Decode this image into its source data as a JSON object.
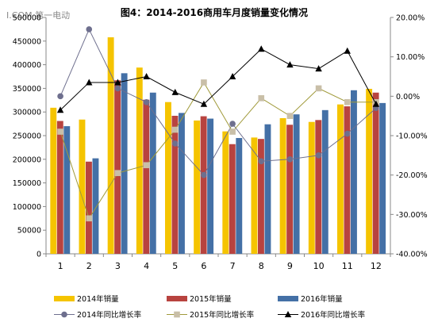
{
  "watermark": "I.COM 第一电动",
  "chart_data": {
    "type": "bar",
    "title": "图4：2014-2016商用车月度销量变化情况",
    "categories": [
      "1",
      "2",
      "3",
      "4",
      "5",
      "6",
      "7",
      "8",
      "9",
      "10",
      "11",
      "12"
    ],
    "left_axis": {
      "min": 0,
      "max": 500000,
      "step": 50000,
      "tick_labels": [
        "0",
        "50000",
        "100000",
        "150000",
        "200000",
        "250000",
        "300000",
        "350000",
        "400000",
        "450000",
        "500000"
      ]
    },
    "right_axis": {
      "min": -40,
      "max": 20,
      "step": 10,
      "tick_labels": [
        "-40.00%",
        "-30.00%",
        "-20.00%",
        "-10.00%",
        "0.00%",
        "10.00%",
        "20.00%"
      ]
    },
    "bar_series": [
      {
        "name": "2014年销量",
        "color": "#F5C400",
        "values": [
          309000,
          284000,
          458000,
          394000,
          321000,
          282000,
          259000,
          246000,
          287000,
          279000,
          316000,
          349000
        ]
      },
      {
        "name": "2015年销量",
        "color": "#B8433F",
        "values": [
          281000,
          195000,
          367000,
          326000,
          292000,
          291000,
          232000,
          243000,
          273000,
          283000,
          312000,
          341000
        ]
      },
      {
        "name": "2016年销量",
        "color": "#4470A6",
        "values": [
          270000,
          202000,
          382000,
          341000,
          298000,
          286000,
          245000,
          274000,
          295000,
          304000,
          346000,
          319000
        ]
      }
    ],
    "line_series": [
      {
        "name": "2014年同比增长率",
        "color": "#6E6F8E",
        "marker": "circle",
        "values": [
          0,
          17,
          2,
          -1.5,
          -12,
          -20,
          -7,
          -16.5,
          -16,
          -15,
          -9.5,
          -3
        ]
      },
      {
        "name": "2015年同比增长率",
        "color": "#A09A3A",
        "marker": "square",
        "values": [
          -9,
          -31,
          -19.5,
          -17.5,
          -8.5,
          3.5,
          -9,
          -0.5,
          -5,
          2,
          -1.5,
          -1.5
        ]
      },
      {
        "name": "2016年同比增长率",
        "color": "#000000",
        "marker": "triangle",
        "values": [
          -3.5,
          3.5,
          3.5,
          5,
          1,
          -2,
          5,
          12,
          8,
          7,
          11.5,
          -2
        ]
      }
    ],
    "legend_position": "bottom",
    "grid": false
  }
}
